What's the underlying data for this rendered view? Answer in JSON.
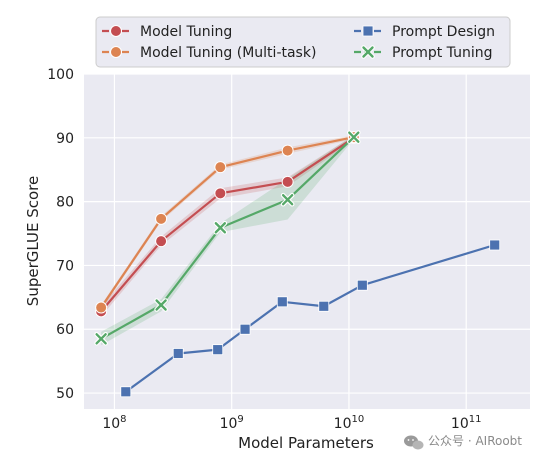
{
  "chart_data": {
    "type": "line",
    "xlabel": "Model Parameters",
    "ylabel": "SuperGLUE Score",
    "x_scale": "log",
    "xlim": [
      55000000,
      350000000000
    ],
    "ylim": [
      47.5,
      100
    ],
    "x_ticks": [
      {
        "value": 100000000,
        "base": "10",
        "exp": "8"
      },
      {
        "value": 1000000000,
        "base": "10",
        "exp": "9"
      },
      {
        "value": 10000000000,
        "base": "10",
        "exp": "10"
      },
      {
        "value": 100000000000,
        "base": "10",
        "exp": "11"
      }
    ],
    "y_ticks": [
      50,
      60,
      70,
      80,
      90,
      100
    ],
    "grid": true,
    "legend_position": "top",
    "series": [
      {
        "name": "Model Tuning",
        "color": "#c44e52",
        "marker": "circle",
        "x": [
          77000000,
          250000000,
          800000000,
          3000000000,
          11000000000
        ],
        "y": [
          62.8,
          73.8,
          81.3,
          83.1,
          90.0
        ],
        "band_low": [
          62.0,
          73.1,
          80.5,
          82.4,
          89.6
        ],
        "band_high": [
          63.6,
          74.5,
          82.1,
          83.8,
          90.4
        ]
      },
      {
        "name": "Model Tuning (Multi-task)",
        "color": "#dd8452",
        "marker": "circle",
        "x": [
          77000000,
          250000000,
          800000000,
          3000000000,
          11000000000
        ],
        "y": [
          63.4,
          77.3,
          85.4,
          88.0,
          90.1
        ],
        "band_low": [
          63.0,
          76.9,
          85.0,
          87.5,
          89.8
        ],
        "band_high": [
          63.8,
          77.7,
          85.8,
          88.5,
          90.4
        ]
      },
      {
        "name": "Prompt Design",
        "color": "#4c72b0",
        "marker": "square",
        "x": [
          125000000,
          350000000,
          760000000,
          1300000000,
          2700000000,
          6100000000,
          13000000000,
          175000000000
        ],
        "y": [
          50.2,
          56.2,
          56.8,
          60.0,
          64.3,
          63.6,
          66.9,
          73.2
        ]
      },
      {
        "name": "Prompt Tuning",
        "color": "#55a868",
        "marker": "x",
        "x": [
          77000000,
          250000000,
          800000000,
          3000000000,
          11000000000
        ],
        "y": [
          58.5,
          63.8,
          75.9,
          80.3,
          90.1
        ],
        "band_low": [
          57.5,
          62.8,
          75.2,
          77.2,
          89.8
        ],
        "band_high": [
          59.6,
          64.7,
          76.6,
          83.6,
          90.4
        ]
      }
    ]
  },
  "watermark": {
    "text": "公众号 · AIRoobt",
    "icon": "wechat-icon"
  }
}
